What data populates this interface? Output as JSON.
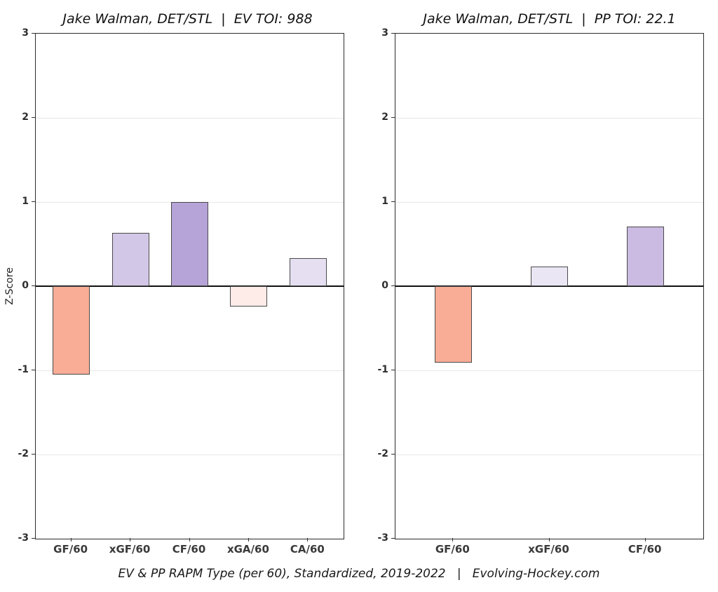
{
  "figure": {
    "ylabel": "Z-Score",
    "caption": "EV & PP RAPM Type (per 60), Standardized, 2019-2022   |   Evolving-Hockey.com",
    "background": "#ffffff",
    "grid_color": "#e7e7e7",
    "zero_line_color": "#111111"
  },
  "chart_data": [
    {
      "type": "bar",
      "title": "Jake Walman, DET/STL  |  EV TOI: 988",
      "categories": [
        "GF/60",
        "xGF/60",
        "CF/60",
        "xGA/60",
        "CA/60"
      ],
      "values": [
        -1.05,
        0.63,
        1.0,
        -0.24,
        0.33
      ],
      "bar_colors": [
        "#F9AD96",
        "#D3C7E8",
        "#B6A3D8",
        "#FDECE8",
        "#E5DFF1"
      ],
      "bar_edge_color": "#4a4a4a",
      "ylabel": "Z-Score",
      "xlabel": "",
      "ylim": [
        -3,
        3
      ],
      "yticks": [
        3,
        2,
        1,
        0,
        -1,
        -2,
        -3
      ],
      "grid": true,
      "legend": "none"
    },
    {
      "type": "bar",
      "title": "Jake Walman, DET/STL  |  PP TOI: 22.1",
      "categories": [
        "GF/60",
        "xGF/60",
        "CF/60"
      ],
      "values": [
        -0.91,
        0.23,
        0.71
      ],
      "bar_colors": [
        "#F9AD96",
        "#EBE6F4",
        "#CBBBE2"
      ],
      "bar_edge_color": "#4a4a4a",
      "ylabel": "",
      "xlabel": "",
      "ylim": [
        -3,
        3
      ],
      "yticks": [
        3,
        2,
        1,
        0,
        -1,
        -2,
        -3
      ],
      "grid": true,
      "legend": "none"
    }
  ]
}
